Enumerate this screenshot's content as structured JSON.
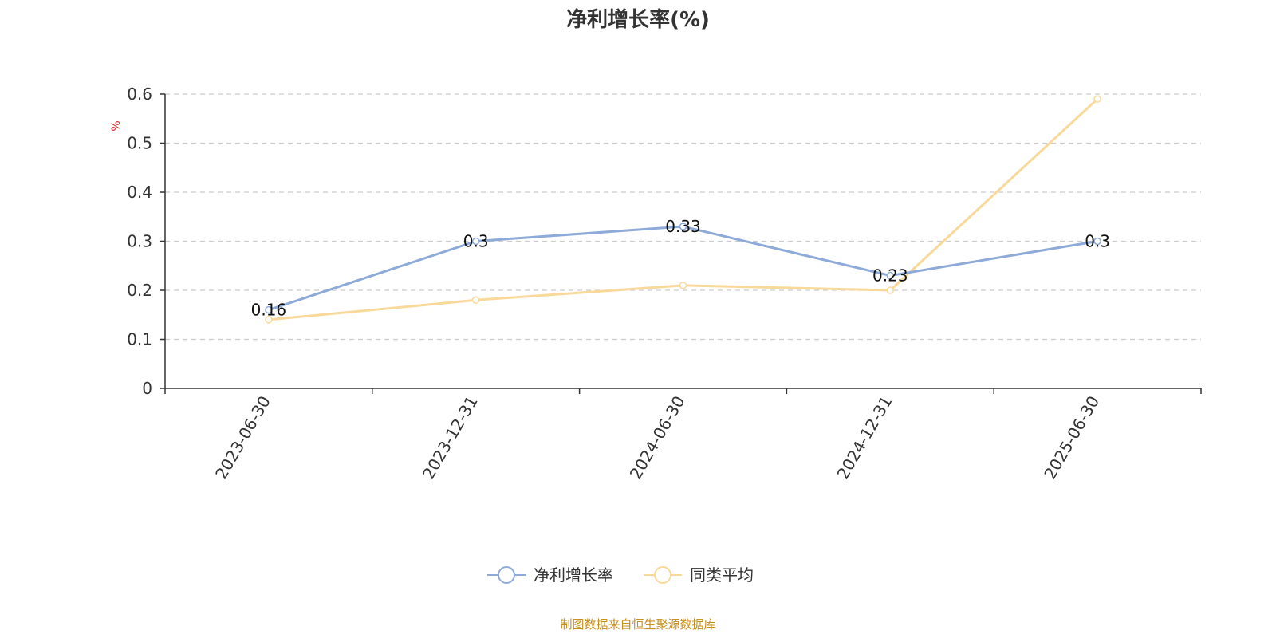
{
  "chart_data": {
    "type": "line",
    "title": "净利增长率(%)",
    "ylabel": "%",
    "categories": [
      "2023-06-30",
      "2023-12-31",
      "2024-06-30",
      "2024-12-31",
      "2025-06-30"
    ],
    "ylim": [
      0,
      0.6
    ],
    "yticks": [
      "0",
      "0.1",
      "0.2",
      "0.3",
      "0.4",
      "0.5",
      "0.6"
    ],
    "grid": true,
    "legend_position": "bottom",
    "series": [
      {
        "name": "净利增长率",
        "color": "#8eaad8",
        "values": [
          0.16,
          0.3,
          0.33,
          0.23,
          0.3
        ],
        "labels": [
          "0.16",
          "0.3",
          "0.33",
          "0.23",
          "0.3"
        ]
      },
      {
        "name": "同类平均",
        "color": "#f9d99a",
        "values": [
          0.14,
          0.18,
          0.21,
          0.2,
          0.59
        ]
      }
    ]
  },
  "source_note": "制图数据来自恒生聚源数据库",
  "colors": {
    "unit": "#e02020",
    "source": "#c8901c",
    "axis": "#333333",
    "grid": "#cccccc"
  }
}
